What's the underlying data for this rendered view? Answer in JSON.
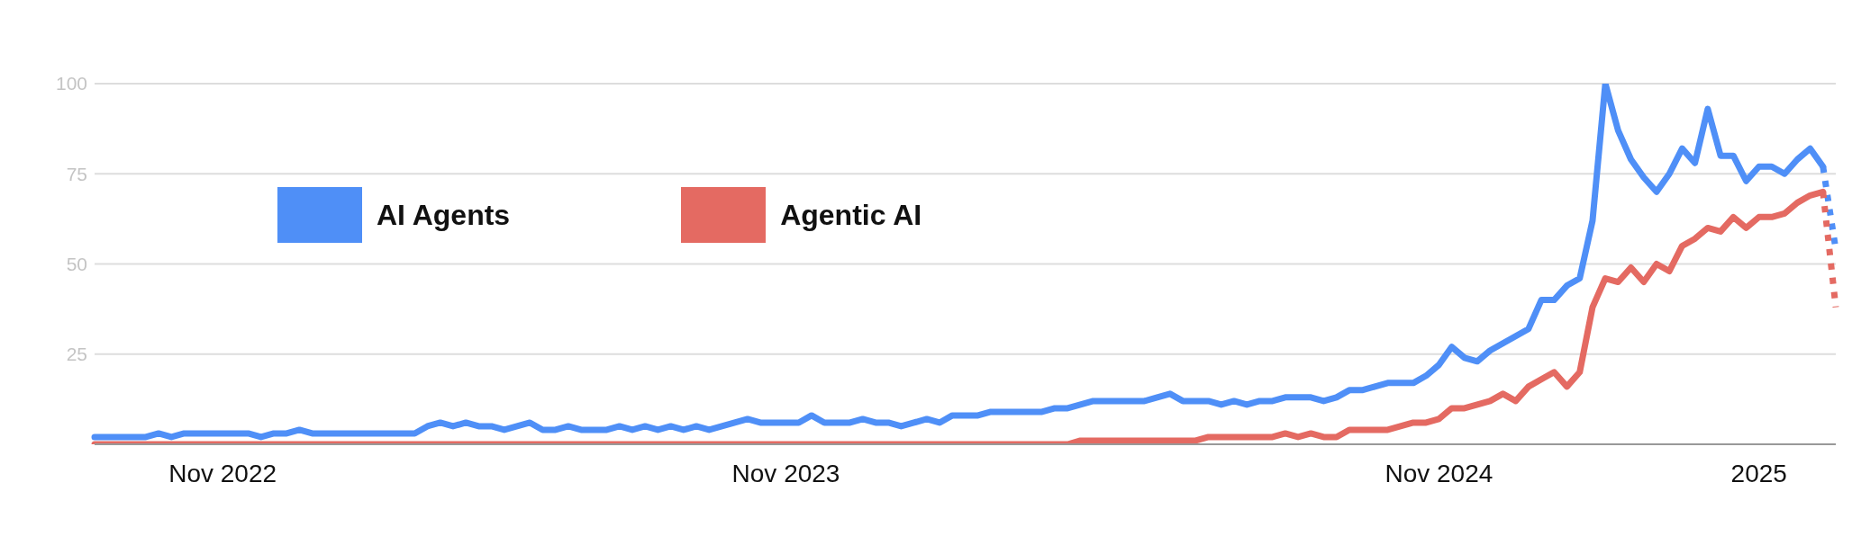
{
  "chart_data": {
    "type": "line",
    "categories": [
      null,
      null,
      null,
      null,
      null,
      null,
      null,
      null,
      null,
      null,
      "Nov 2022",
      null,
      null,
      null,
      null,
      null,
      null,
      null,
      null,
      null,
      null,
      null,
      null,
      null,
      null,
      null,
      null,
      null,
      null,
      null,
      null,
      null,
      null,
      null,
      null,
      null,
      null,
      null,
      null,
      null,
      null,
      null,
      null,
      null,
      null,
      null,
      null,
      null,
      null,
      null,
      null,
      null,
      null,
      null,
      "Nov 2023",
      null,
      null,
      null,
      null,
      null,
      null,
      null,
      null,
      null,
      null,
      null,
      null,
      null,
      null,
      null,
      null,
      null,
      null,
      null,
      null,
      null,
      null,
      null,
      null,
      null,
      null,
      null,
      null,
      null,
      null,
      null,
      null,
      null,
      null,
      null,
      null,
      null,
      null,
      null,
      null,
      null,
      null,
      null,
      null,
      null,
      null,
      null,
      null,
      null,
      null,
      "Nov 2024",
      null,
      null,
      null,
      null,
      null,
      null,
      null,
      null,
      null,
      null,
      null,
      null,
      null,
      null,
      null,
      null,
      null,
      null,
      null,
      null,
      null,
      null,
      null,
      null,
      "2025",
      null,
      null,
      null,
      null,
      null,
      null
    ],
    "series": [
      {
        "name": "AI Agents",
        "color": "#4f8ff7",
        "values": [
          2,
          2,
          2,
          2,
          2,
          3,
          2,
          3,
          3,
          3,
          3,
          3,
          3,
          2,
          3,
          3,
          4,
          3,
          3,
          3,
          3,
          3,
          3,
          3,
          3,
          3,
          5,
          6,
          5,
          6,
          5,
          5,
          4,
          5,
          6,
          4,
          4,
          5,
          4,
          4,
          4,
          5,
          4,
          5,
          4,
          5,
          4,
          5,
          4,
          5,
          6,
          7,
          6,
          6,
          6,
          6,
          8,
          6,
          6,
          6,
          7,
          6,
          6,
          5,
          6,
          7,
          6,
          8,
          8,
          8,
          9,
          9,
          9,
          9,
          9,
          10,
          10,
          11,
          12,
          12,
          12,
          12,
          12,
          13,
          14,
          12,
          12,
          12,
          11,
          12,
          11,
          12,
          12,
          13,
          13,
          13,
          12,
          13,
          15,
          15,
          16,
          17,
          17,
          17,
          19,
          22,
          27,
          24,
          23,
          26,
          28,
          30,
          32,
          40,
          40,
          44,
          46,
          62,
          100,
          87,
          79,
          74,
          70,
          75,
          82,
          78,
          93,
          80,
          80,
          73,
          77,
          77,
          75,
          79,
          82,
          77,
          null
        ]
      },
      {
        "name": "Agentic AI",
        "color": "#e46a62",
        "values": [
          0,
          0,
          0,
          0,
          0,
          0,
          0,
          0,
          0,
          0,
          0,
          0,
          0,
          0,
          0,
          0,
          0,
          0,
          0,
          0,
          0,
          0,
          0,
          0,
          0,
          0,
          0,
          0,
          0,
          0,
          0,
          0,
          0,
          0,
          0,
          0,
          0,
          0,
          0,
          0,
          0,
          0,
          0,
          0,
          0,
          0,
          0,
          0,
          0,
          0,
          0,
          0,
          0,
          0,
          0,
          0,
          0,
          0,
          0,
          0,
          0,
          0,
          0,
          0,
          0,
          0,
          0,
          0,
          0,
          0,
          0,
          0,
          0,
          0,
          0,
          0,
          0,
          1,
          1,
          1,
          1,
          1,
          1,
          1,
          1,
          1,
          1,
          2,
          2,
          2,
          2,
          2,
          2,
          3,
          2,
          3,
          2,
          2,
          4,
          4,
          4,
          4,
          5,
          6,
          6,
          7,
          10,
          10,
          11,
          12,
          14,
          12,
          16,
          18,
          20,
          16,
          20,
          38,
          46,
          45,
          49,
          45,
          50,
          48,
          55,
          57,
          60,
          59,
          63,
          60,
          63,
          63,
          64,
          67,
          69,
          70,
          null
        ]
      },
      {
        "color": "#4f8ff7",
        "line_style": "dotted",
        "values": [
          null,
          null,
          null,
          null,
          null,
          null,
          null,
          null,
          null,
          null,
          null,
          null,
          null,
          null,
          null,
          null,
          null,
          null,
          null,
          null,
          null,
          null,
          null,
          null,
          null,
          null,
          null,
          null,
          null,
          null,
          null,
          null,
          null,
          null,
          null,
          null,
          null,
          null,
          null,
          null,
          null,
          null,
          null,
          null,
          null,
          null,
          null,
          null,
          null,
          null,
          null,
          null,
          null,
          null,
          null,
          null,
          null,
          null,
          null,
          null,
          null,
          null,
          null,
          null,
          null,
          null,
          null,
          null,
          null,
          null,
          null,
          null,
          null,
          null,
          null,
          null,
          null,
          null,
          null,
          null,
          null,
          null,
          null,
          null,
          null,
          null,
          null,
          null,
          null,
          null,
          null,
          null,
          null,
          null,
          null,
          null,
          null,
          null,
          null,
          null,
          null,
          null,
          null,
          null,
          null,
          null,
          null,
          null,
          null,
          null,
          null,
          null,
          null,
          null,
          null,
          null,
          null,
          null,
          null,
          null,
          null,
          null,
          null,
          null,
          null,
          null,
          null,
          null,
          null,
          null,
          null,
          null,
          null,
          null,
          null,
          77,
          54
        ]
      },
      {
        "color": "#e46a62",
        "line_style": "dotted",
        "values": [
          null,
          null,
          null,
          null,
          null,
          null,
          null,
          null,
          null,
          null,
          null,
          null,
          null,
          null,
          null,
          null,
          null,
          null,
          null,
          null,
          null,
          null,
          null,
          null,
          null,
          null,
          null,
          null,
          null,
          null,
          null,
          null,
          null,
          null,
          null,
          null,
          null,
          null,
          null,
          null,
          null,
          null,
          null,
          null,
          null,
          null,
          null,
          null,
          null,
          null,
          null,
          null,
          null,
          null,
          null,
          null,
          null,
          null,
          null,
          null,
          null,
          null,
          null,
          null,
          null,
          null,
          null,
          null,
          null,
          null,
          null,
          null,
          null,
          null,
          null,
          null,
          null,
          null,
          null,
          null,
          null,
          null,
          null,
          null,
          null,
          null,
          null,
          null,
          null,
          null,
          null,
          null,
          null,
          null,
          null,
          null,
          null,
          null,
          null,
          null,
          null,
          null,
          null,
          null,
          null,
          null,
          null,
          null,
          null,
          null,
          null,
          null,
          null,
          null,
          null,
          null,
          null,
          null,
          null,
          null,
          null,
          null,
          null,
          null,
          null,
          null,
          null,
          null,
          null,
          null,
          null,
          null,
          null,
          null,
          null,
          70,
          38
        ]
      }
    ],
    "ylim": [
      0,
      100
    ],
    "yticks": [
      {
        "value": 0,
        "label": null
      },
      25,
      50,
      75,
      100
    ],
    "grid": "y",
    "legend": "top left",
    "marker": "none",
    "line_style": "solid"
  }
}
